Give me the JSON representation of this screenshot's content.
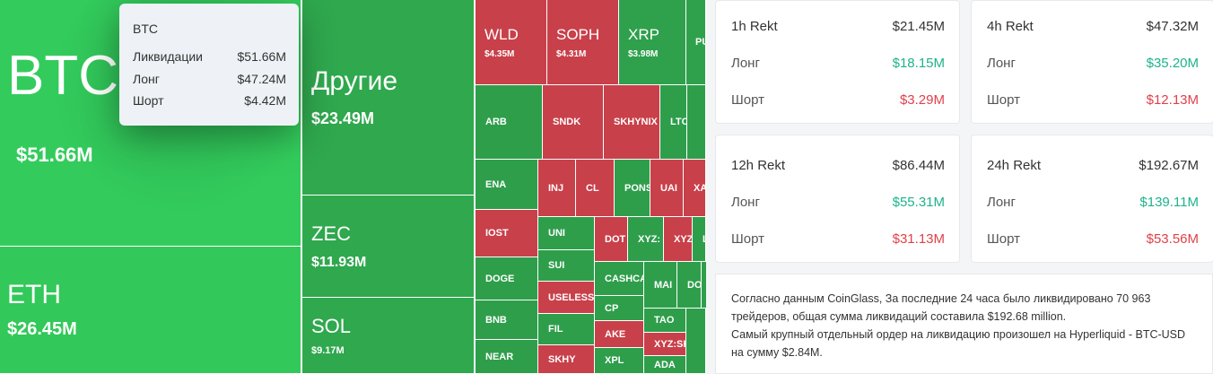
{
  "treemap": {
    "cells": [
      {
        "label": "BTC",
        "value": "$51.66M",
        "color": "#33cc5c"
      },
      {
        "label": "ETH",
        "value": "$26.45M",
        "color": "#33c85a"
      },
      {
        "label": "Другие",
        "value": "$23.49M",
        "color": "#2fa84e"
      },
      {
        "label": "ZEC",
        "value": "$11.93M",
        "color": "#2fa84e"
      },
      {
        "label": "SOL",
        "value": "$9.17M",
        "color": "#2fa84e"
      },
      {
        "label": "WLD",
        "value": "$4.35M",
        "color": "#c8404a"
      },
      {
        "label": "SOPH",
        "value": "$4.31M",
        "color": "#c8404a"
      },
      {
        "label": "XRP",
        "value": "$3.98M",
        "color": "#2fa04c"
      },
      {
        "label": "PU",
        "color": "#2fa04c"
      },
      {
        "label": "ARB",
        "color": "#2e9e4b"
      },
      {
        "label": "SNDK",
        "color": "#c8404a"
      },
      {
        "label": "SKHYNIX",
        "color": "#c8404a"
      },
      {
        "label": "LTC",
        "color": "#2e9e4b"
      },
      {
        "color": "#2e9e4b"
      },
      {
        "label": "ENA",
        "color": "#2e9e4b"
      },
      {
        "label": "INJ",
        "color": "#c8404a"
      },
      {
        "label": "CL",
        "color": "#c8404a"
      },
      {
        "label": "PONS",
        "color": "#2e9e4b"
      },
      {
        "label": "UAI",
        "color": "#c8404a"
      },
      {
        "label": "XA",
        "color": "#c8404a"
      },
      {
        "label": "IOST",
        "color": "#c8404a"
      },
      {
        "label": "DOGE",
        "color": "#2e9e4b"
      },
      {
        "label": "BNB",
        "color": "#2e9e4b"
      },
      {
        "label": "NEAR",
        "color": "#2e9e4b"
      },
      {
        "label": "UNI",
        "color": "#2e9e4b"
      },
      {
        "label": "DOT",
        "color": "#c8404a"
      },
      {
        "label": "XYZ:",
        "color": "#2e9e4b"
      },
      {
        "label": "XYZ",
        "color": "#c8404a"
      },
      {
        "label": "L",
        "color": "#2e9e4b"
      },
      {
        "label": "SUI",
        "color": "#2e9e4b"
      },
      {
        "label": "USELESS",
        "color": "#c8404a"
      },
      {
        "label": "FIL",
        "color": "#2e9e4b"
      },
      {
        "label": "SKHY",
        "color": "#c8404a"
      },
      {
        "label": "CASHCA",
        "color": "#2e9e4b"
      },
      {
        "label": "CP",
        "color": "#2e9e4b"
      },
      {
        "label": "AKE",
        "color": "#c8404a"
      },
      {
        "label": "XPL",
        "color": "#2e9e4b"
      },
      {
        "label": "MAI",
        "color": "#2e9e4b"
      },
      {
        "label": "DOG",
        "color": "#2e9e4b"
      },
      {
        "color": "#2e9e4b"
      },
      {
        "label": "TAO",
        "color": "#2e9e4b"
      },
      {
        "label": "XYZ:SK",
        "color": "#c8404a"
      },
      {
        "label": "ADA",
        "color": "#2e9e4b"
      },
      {
        "color": "#2e9e4b"
      }
    ]
  },
  "tooltip": {
    "title": "BTC",
    "rows": [
      {
        "label": "Ликвидации",
        "value": "$51.66M"
      },
      {
        "label": "Лонг",
        "value": "$47.24M"
      },
      {
        "label": "Шорт",
        "value": "$4.42M"
      }
    ]
  },
  "cards": [
    {
      "title": "1h Rekt",
      "total": "$21.45M",
      "long_label": "Лонг",
      "long": "$18.15M",
      "short_label": "Шорт",
      "short": "$3.29M"
    },
    {
      "title": "4h Rekt",
      "total": "$47.32M",
      "long_label": "Лонг",
      "long": "$35.20M",
      "short_label": "Шорт",
      "short": "$12.13M"
    },
    {
      "title": "12h Rekt",
      "total": "$86.44M",
      "long_label": "Лонг",
      "long": "$55.31M",
      "short_label": "Шорт",
      "short": "$31.13M"
    },
    {
      "title": "24h Rekt",
      "total": "$192.67M",
      "long_label": "Лонг",
      "long": "$139.11M",
      "short_label": "Шорт",
      "short": "$53.56M"
    }
  ],
  "note": [
    "Согласно данным CoinGlass, За последние 24 часа было ликвидировано 70 963 трейдеров, общая сумма ликвидаций составила $192.68 million.",
    "Самый крупный отдельный ордер на ликвидацию произошел на Hyperliquid - BTC-USD на сумму $2.84M."
  ]
}
